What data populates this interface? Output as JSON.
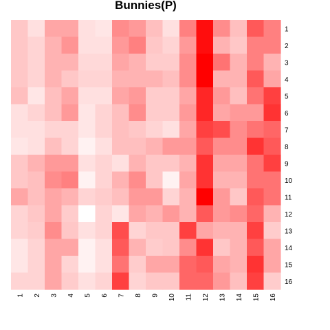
{
  "chart_data": {
    "type": "heatmap",
    "title": "Bunnies(P)",
    "xlabel": "",
    "ylabel": "",
    "x_labels": [
      "1",
      "2",
      "3",
      "4",
      "5",
      "6",
      "7",
      "8",
      "9",
      "10",
      "11",
      "12",
      "13",
      "14",
      "15",
      "16"
    ],
    "y_labels": [
      "1",
      "2",
      "3",
      "4",
      "5",
      "6",
      "7",
      "8",
      "9",
      "10",
      "11",
      "12",
      "13",
      "14",
      "15",
      "16"
    ],
    "value_range": [
      0,
      1
    ],
    "colors": {
      "low": "#ffffff",
      "high": "#ff0000"
    },
    "grid": false,
    "legend": "none",
    "values": [
      [
        0.22,
        0.12,
        0.35,
        0.35,
        0.12,
        0.1,
        0.45,
        0.4,
        0.25,
        0.12,
        0.5,
        0.95,
        0.45,
        0.25,
        0.65,
        0.5
      ],
      [
        0.22,
        0.17,
        0.3,
        0.42,
        0.12,
        0.12,
        0.4,
        0.5,
        0.22,
        0.17,
        0.4,
        0.95,
        0.3,
        0.22,
        0.5,
        0.5
      ],
      [
        0.22,
        0.17,
        0.3,
        0.3,
        0.15,
        0.15,
        0.35,
        0.3,
        0.2,
        0.2,
        0.45,
        1.0,
        0.55,
        0.3,
        0.5,
        0.3
      ],
      [
        0.22,
        0.17,
        0.3,
        0.22,
        0.17,
        0.17,
        0.3,
        0.3,
        0.3,
        0.25,
        0.45,
        1.0,
        0.3,
        0.3,
        0.65,
        0.35
      ],
      [
        0.25,
        0.1,
        0.25,
        0.35,
        0.12,
        0.12,
        0.35,
        0.4,
        0.2,
        0.2,
        0.35,
        0.85,
        0.4,
        0.25,
        0.55,
        0.75
      ],
      [
        0.12,
        0.17,
        0.25,
        0.4,
        0.1,
        0.17,
        0.25,
        0.45,
        0.2,
        0.2,
        0.4,
        0.85,
        0.35,
        0.4,
        0.4,
        0.8
      ],
      [
        0.12,
        0.12,
        0.17,
        0.17,
        0.1,
        0.17,
        0.25,
        0.22,
        0.17,
        0.12,
        0.35,
        0.75,
        0.7,
        0.45,
        0.55,
        0.6
      ],
      [
        0.1,
        0.12,
        0.25,
        0.17,
        0.05,
        0.12,
        0.25,
        0.25,
        0.3,
        0.4,
        0.4,
        0.65,
        0.45,
        0.45,
        0.8,
        0.65
      ],
      [
        0.22,
        0.3,
        0.4,
        0.4,
        0.12,
        0.17,
        0.12,
        0.3,
        0.22,
        0.22,
        0.3,
        0.8,
        0.35,
        0.35,
        0.55,
        0.75
      ],
      [
        0.22,
        0.25,
        0.45,
        0.5,
        0.05,
        0.17,
        0.3,
        0.45,
        0.22,
        0.05,
        0.35,
        0.8,
        0.3,
        0.3,
        0.55,
        0.55
      ],
      [
        0.35,
        0.25,
        0.35,
        0.3,
        0.17,
        0.2,
        0.25,
        0.4,
        0.4,
        0.17,
        0.3,
        1.0,
        0.4,
        0.22,
        0.65,
        0.55
      ],
      [
        0.17,
        0.22,
        0.35,
        0.2,
        0.0,
        0.17,
        0.1,
        0.35,
        0.3,
        0.4,
        0.3,
        0.65,
        0.4,
        0.45,
        0.6,
        0.3
      ],
      [
        0.17,
        0.2,
        0.45,
        0.22,
        0.12,
        0.17,
        0.7,
        0.17,
        0.22,
        0.22,
        0.75,
        0.35,
        0.3,
        0.3,
        0.75,
        0.2
      ],
      [
        0.1,
        0.17,
        0.35,
        0.35,
        0.05,
        0.12,
        0.65,
        0.3,
        0.2,
        0.22,
        0.45,
        0.8,
        0.22,
        0.3,
        0.65,
        0.35
      ],
      [
        0.1,
        0.17,
        0.35,
        0.17,
        0.05,
        0.12,
        0.55,
        0.2,
        0.35,
        0.35,
        0.6,
        0.65,
        0.35,
        0.3,
        0.8,
        0.35
      ],
      [
        0.17,
        0.17,
        0.35,
        0.2,
        0.12,
        0.17,
        0.75,
        0.17,
        0.22,
        0.22,
        0.6,
        0.6,
        0.4,
        0.25,
        0.75,
        0.2
      ]
    ]
  }
}
